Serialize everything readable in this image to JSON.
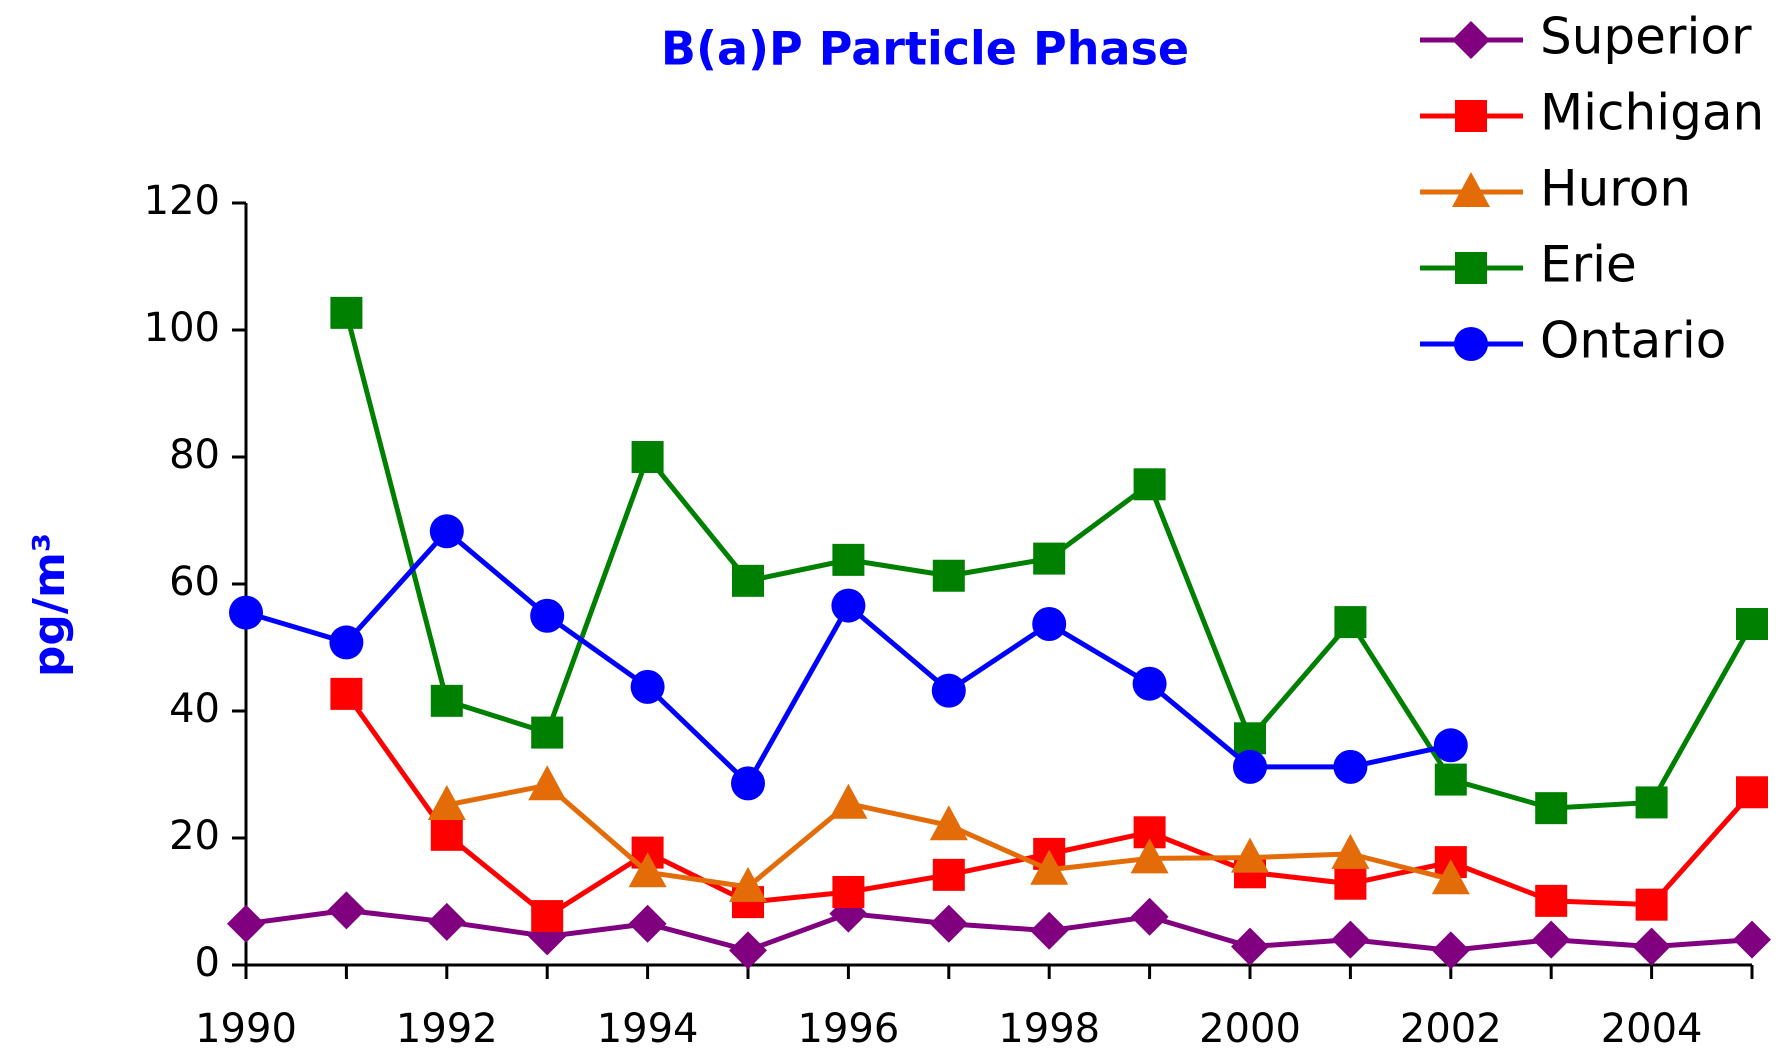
{
  "chart_data": {
    "type": "line",
    "title": "B(a)P Particle Phase",
    "y_label": "pg/m³",
    "x": [
      1990,
      1991,
      1992,
      1993,
      1994,
      1995,
      1996,
      1997,
      1998,
      1999,
      2000,
      2001,
      2002,
      2003,
      2004,
      2005
    ],
    "xlim": [
      1990,
      2005
    ],
    "xticks": [
      1990,
      1992,
      1994,
      1996,
      1998,
      2000,
      2002,
      2004
    ],
    "ylim": [
      0,
      120
    ],
    "yticks": [
      0,
      20,
      40,
      60,
      80,
      100,
      120
    ],
    "legend": "top-right",
    "series": [
      {
        "name": "Superior",
        "color": "#800080",
        "marker": "diamond",
        "values": [
          6.5,
          8.6,
          6.8,
          4.5,
          6.5,
          2.3,
          8.1,
          6.5,
          5.4,
          7.6,
          2.9,
          4,
          2.3,
          4,
          2.9,
          4
        ]
      },
      {
        "name": "Michigan",
        "color": "#ff0000",
        "marker": "square",
        "values": [
          null,
          42.7,
          20.5,
          7.7,
          17.7,
          9.9,
          11.5,
          14.2,
          17.5,
          20.9,
          14.6,
          12.8,
          16.2,
          10.1,
          9.5,
          27.2
        ]
      },
      {
        "name": "Huron",
        "color": "#e36c09",
        "marker": "triangle",
        "values": [
          null,
          null,
          25.2,
          28.3,
          14.6,
          12.3,
          25.4,
          22,
          15,
          16.8,
          16.9,
          17.5,
          13.5,
          null,
          null,
          null
        ]
      },
      {
        "name": "Erie",
        "color": "#008000",
        "marker": "square",
        "values": [
          null,
          102.7,
          41.6,
          36.6,
          80,
          60.5,
          63.8,
          61.3,
          64,
          75.7,
          35.7,
          54,
          29.2,
          24.7,
          25.6,
          53.7
        ]
      },
      {
        "name": "Ontario",
        "color": "#0000ff",
        "marker": "circle",
        "values": [
          55.5,
          50.8,
          68.3,
          55,
          43.8,
          28.6,
          56.6,
          43.2,
          53.7,
          44.3,
          31.2,
          31.2,
          34.6,
          null,
          null,
          null
        ]
      }
    ]
  }
}
